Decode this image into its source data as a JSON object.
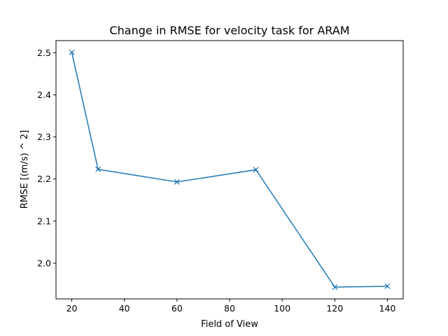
{
  "chart_data": {
    "type": "line",
    "title": "Change in RMSE for velocity task for ARAM",
    "xlabel": "Field of View",
    "ylabel": "RMSE [(m/s) ^ 2]",
    "x": [
      20,
      30,
      60,
      90,
      120,
      140
    ],
    "series": [
      {
        "values": [
          2.501,
          2.223,
          2.193,
          2.222,
          1.943,
          1.945
        ],
        "color": "#1f77b4",
        "marker": "x"
      }
    ],
    "xlim": [
      14,
      146
    ],
    "ylim": [
      1.915,
      2.529
    ],
    "xticks": [
      20,
      40,
      60,
      80,
      100,
      120,
      140
    ],
    "yticks": [
      2.0,
      2.1,
      2.2,
      2.3,
      2.4,
      2.5
    ],
    "grid": false
  }
}
